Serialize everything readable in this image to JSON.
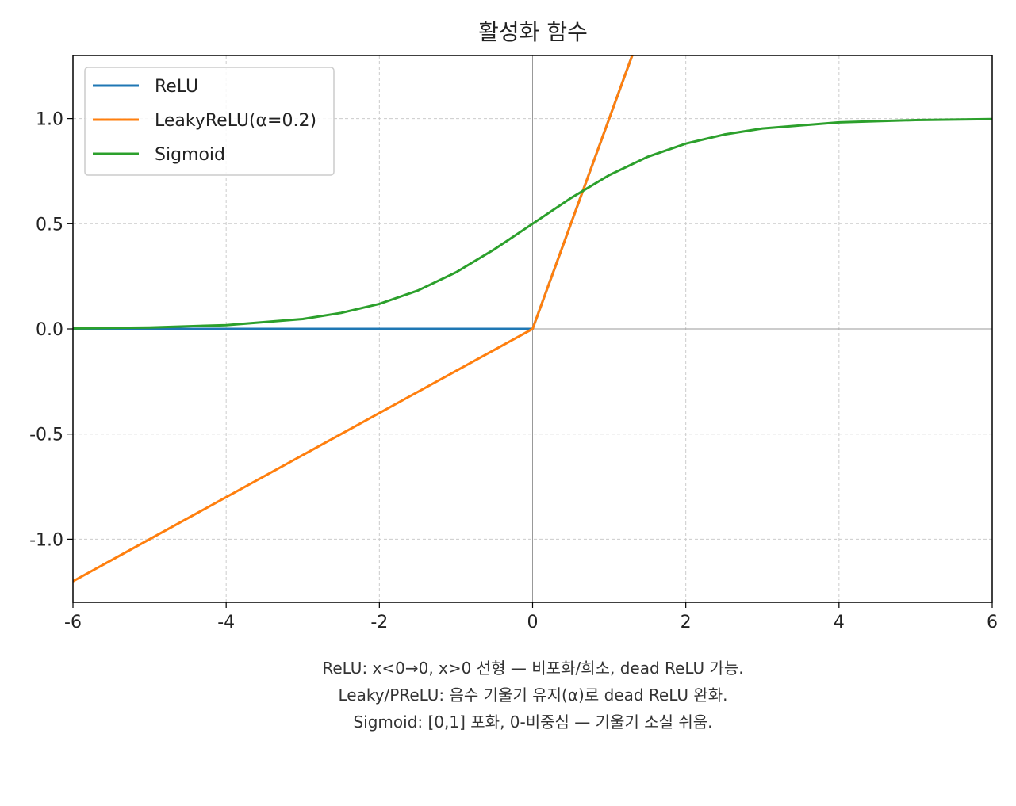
{
  "chart_data": {
    "type": "line",
    "title": "활성화 함수",
    "xlabel": "",
    "ylabel": "",
    "xlim": [
      -6,
      6
    ],
    "ylim": [
      -1.3,
      1.3
    ],
    "grid": true,
    "legend_position": "top-left",
    "x_ticks": [
      -6,
      -4,
      -2,
      0,
      2,
      4,
      6
    ],
    "x_tick_labels": [
      "-6",
      "-4",
      "-2",
      "0",
      "2",
      "4",
      "6"
    ],
    "y_ticks": [
      -1.0,
      -0.5,
      0.0,
      0.5,
      1.0
    ],
    "y_tick_labels": [
      "-1.0",
      "-0.5",
      "0.0",
      "0.5",
      "1.0"
    ],
    "series": [
      {
        "name": "ReLU",
        "color": "#1f77b4",
        "x": [
          -6,
          0,
          1.3
        ],
        "y": [
          0,
          0,
          1.3
        ]
      },
      {
        "name": "LeakyReLU(α=0.2)",
        "color": "#ff7f0e",
        "x": [
          -6,
          0,
          1.3
        ],
        "y": [
          -1.2,
          0,
          1.3
        ]
      },
      {
        "name": "Sigmoid",
        "color": "#2ca02c",
        "x": [
          -6,
          -5,
          -4,
          -3,
          -2.5,
          -2,
          -1.5,
          -1,
          -0.5,
          0,
          0.5,
          1,
          1.5,
          2,
          2.5,
          3,
          4,
          5,
          6
        ],
        "y": [
          0.0025,
          0.0067,
          0.018,
          0.047,
          0.076,
          0.119,
          0.182,
          0.269,
          0.378,
          0.5,
          0.622,
          0.731,
          0.818,
          0.881,
          0.924,
          0.953,
          0.982,
          0.993,
          0.9975
        ]
      }
    ],
    "annotations": [
      "ReLU: x<0→0, x>0 선형 — 비포화/희소, dead ReLU 가능.",
      "Leaky/PReLU: 음수 기울기 유지(α)로 dead ReLU 완화.",
      "Sigmoid: [0,1] 포화, 0-비중심 — 기울기 소실 쉬움."
    ]
  }
}
